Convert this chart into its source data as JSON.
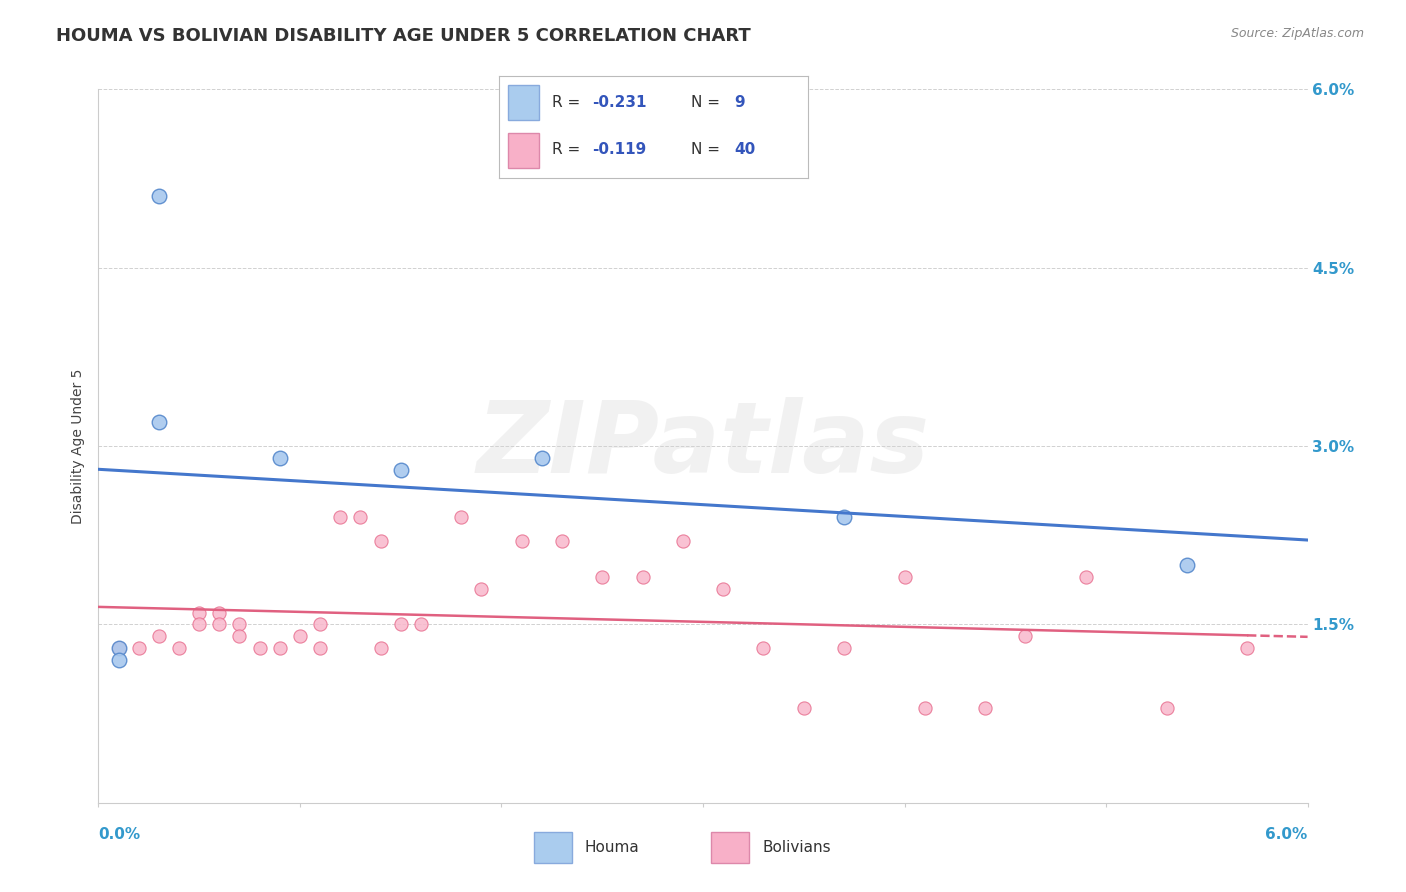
{
  "title": "HOUMA VS BOLIVIAN DISABILITY AGE UNDER 5 CORRELATION CHART",
  "source": "Source: ZipAtlas.com",
  "ylabel": "Disability Age Under 5",
  "xmin": 0.0,
  "xmax": 0.06,
  "ymin": 0.0,
  "ymax": 0.06,
  "yticks": [
    0.0,
    0.015,
    0.03,
    0.045,
    0.06
  ],
  "ytick_labels": [
    "",
    "1.5%",
    "3.0%",
    "4.5%",
    "6.0%"
  ],
  "houma_x": [
    0.003,
    0.003,
    0.009,
    0.015,
    0.022,
    0.037,
    0.054,
    0.001,
    0.001
  ],
  "houma_y": [
    0.051,
    0.032,
    0.029,
    0.028,
    0.029,
    0.024,
    0.02,
    0.013,
    0.012
  ],
  "bolivians_x": [
    0.001,
    0.001,
    0.002,
    0.003,
    0.004,
    0.005,
    0.005,
    0.006,
    0.006,
    0.007,
    0.007,
    0.008,
    0.009,
    0.01,
    0.011,
    0.011,
    0.012,
    0.013,
    0.014,
    0.014,
    0.015,
    0.016,
    0.018,
    0.019,
    0.021,
    0.023,
    0.025,
    0.027,
    0.029,
    0.031,
    0.033,
    0.035,
    0.037,
    0.04,
    0.041,
    0.044,
    0.046,
    0.049,
    0.053,
    0.057
  ],
  "bolivians_y": [
    0.013,
    0.013,
    0.013,
    0.014,
    0.013,
    0.016,
    0.015,
    0.016,
    0.015,
    0.015,
    0.014,
    0.013,
    0.013,
    0.014,
    0.013,
    0.015,
    0.024,
    0.024,
    0.022,
    0.013,
    0.015,
    0.015,
    0.024,
    0.018,
    0.022,
    0.022,
    0.019,
    0.019,
    0.022,
    0.018,
    0.013,
    0.008,
    0.013,
    0.019,
    0.008,
    0.008,
    0.014,
    0.019,
    0.008,
    0.013
  ],
  "houma_color": "#a8c8ee",
  "bolivians_color": "#f8b8cc",
  "houma_edge_color": "#5588cc",
  "bolivians_edge_color": "#e87090",
  "houma_line_color": "#4477cc",
  "bolivians_line_color": "#e06080",
  "background_color": "#ffffff",
  "grid_color": "#cccccc",
  "watermark_text": "ZIPatlas",
  "title_fontsize": 13,
  "legend_r_color": "#3355bb",
  "legend_text_color": "#333333",
  "houma_legend_color": "#aaccee",
  "bolivians_legend_color": "#f8b0c8"
}
